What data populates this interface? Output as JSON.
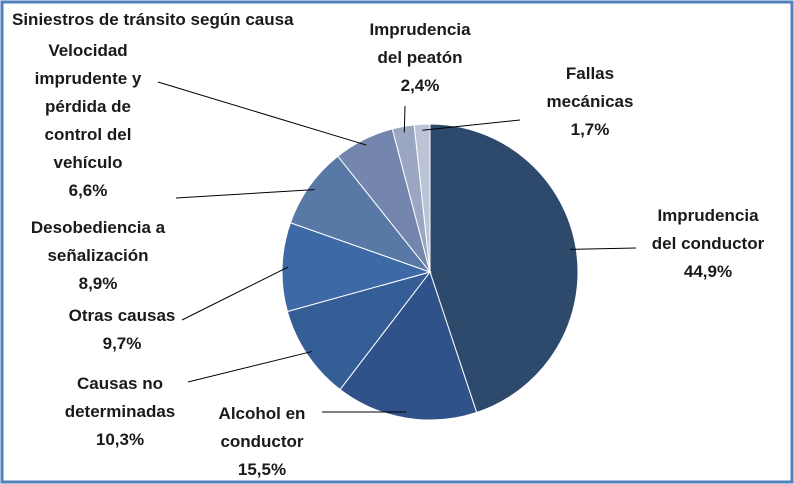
{
  "chart_data": {
    "type": "pie",
    "title": "Siniestros de tránsito según causa",
    "categories": [
      "Imprudencia del conductor",
      "Alcohol en conductor",
      "Causas no determinadas",
      "Otras causas",
      "Desobediencia a señalización",
      "Velocidad imprudente y pérdida de control del vehículo",
      "Imprudencia del peatón",
      "Fallas mecánicas"
    ],
    "values": [
      44.9,
      15.5,
      10.3,
      9.7,
      8.9,
      6.6,
      2.4,
      1.7
    ],
    "value_labels": [
      "44,9%",
      "15,5%",
      "10,3%",
      "9,7%",
      "8,9%",
      "6,6%",
      "2,4%",
      "1,7%"
    ],
    "colors": [
      "#2d4a6d",
      "#30528a",
      "#355e96",
      "#3d69a6",
      "#5878a6",
      "#7486ad",
      "#9aa6c2",
      "#bcc3d6"
    ]
  }
}
